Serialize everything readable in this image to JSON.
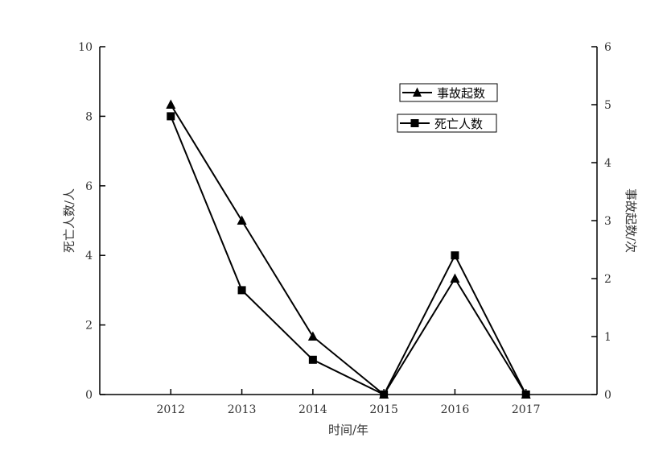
{
  "chart_data": {
    "type": "line",
    "title": "",
    "xlabel": "时间/年",
    "ylabel_left": "死亡人数/人",
    "ylabel_right": "事故起数/次",
    "categories": [
      "2012",
      "2013",
      "2014",
      "2015",
      "2016",
      "2017"
    ],
    "x_range": [
      2011,
      2018
    ],
    "ylim_left": [
      0,
      10
    ],
    "ylim_right": [
      0,
      6
    ],
    "yticks_left": [
      0,
      2,
      4,
      6,
      8,
      10
    ],
    "yticks_right": [
      0,
      1,
      2,
      3,
      4,
      5,
      6
    ],
    "grid": false,
    "legend_placement": "upper-right",
    "series": [
      {
        "name": "事故起数",
        "axis": "right",
        "marker": "triangle",
        "values": [
          5,
          3,
          1,
          0,
          2,
          0
        ]
      },
      {
        "name": "死亡人数",
        "axis": "left",
        "marker": "square",
        "values": [
          8,
          3,
          1,
          0,
          4,
          0
        ]
      }
    ],
    "colors": {
      "line": "#000000",
      "axis": "#000000"
    }
  }
}
